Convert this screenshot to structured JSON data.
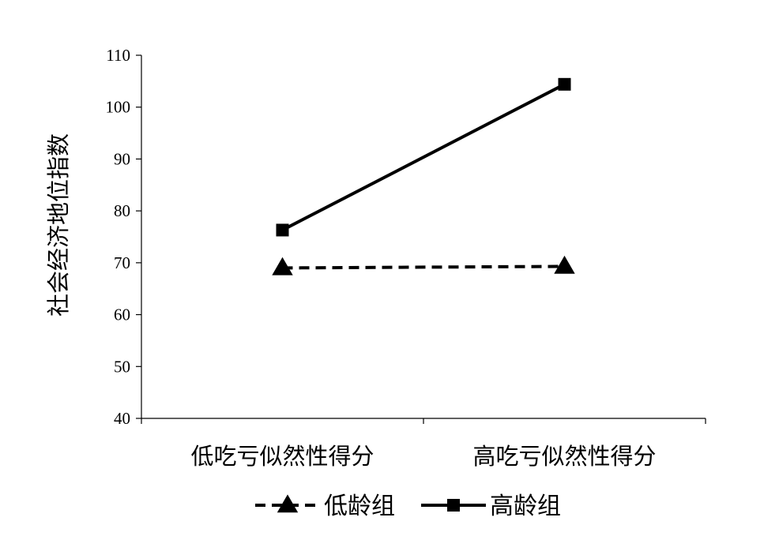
{
  "chart_data": {
    "type": "line",
    "title": "",
    "xlabel": "",
    "ylabel": "社会经济地位指数",
    "categories": [
      "低吃亏似然性得分",
      "高吃亏似然性得分"
    ],
    "ylim": [
      40,
      110
    ],
    "yticks": [
      40,
      50,
      60,
      70,
      80,
      90,
      100,
      110
    ],
    "grid": false,
    "legend_position": "bottom",
    "series": [
      {
        "name": "低龄组",
        "values": [
          69,
          69.3
        ],
        "line_style": "dashed",
        "marker": "triangle",
        "color": "#000000"
      },
      {
        "name": "高龄组",
        "values": [
          76.3,
          104.4
        ],
        "line_style": "solid",
        "marker": "square",
        "color": "#000000"
      }
    ]
  }
}
